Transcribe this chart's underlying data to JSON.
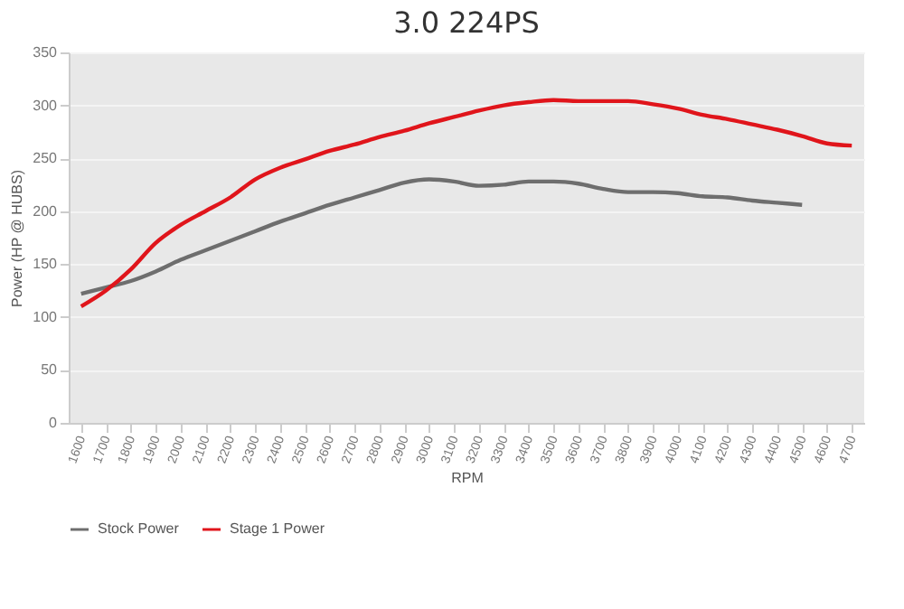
{
  "chart_data": {
    "type": "line",
    "title": "3.0 224PS",
    "xlabel": "RPM",
    "ylabel": "Power (HP @ HUBS)",
    "categories": [
      "1600",
      "1700",
      "1800",
      "1900",
      "2000",
      "2100",
      "2200",
      "2300",
      "2400",
      "2500",
      "2600",
      "2700",
      "2800",
      "2900",
      "3000",
      "3100",
      "3200",
      "3300",
      "3400",
      "3500",
      "3600",
      "3700",
      "3800",
      "3900",
      "4000",
      "4100",
      "4200",
      "4300",
      "4400",
      "4500",
      "4600",
      "4700"
    ],
    "series": [
      {
        "name": "Stock Power",
        "color": "#6e6e6e",
        "values": [
          122,
          128,
          134,
          143,
          154,
          163,
          172,
          181,
          190,
          198,
          206,
          213,
          220,
          227,
          230,
          228,
          224,
          225,
          228,
          228,
          226,
          221,
          218,
          218,
          217,
          214,
          213,
          210,
          208,
          206,
          null,
          null
        ]
      },
      {
        "name": "Stage 1 Power",
        "color": "#e0151b",
        "values": [
          110,
          125,
          145,
          170,
          187,
          200,
          213,
          230,
          241,
          249,
          257,
          263,
          270,
          276,
          283,
          289,
          295,
          300,
          303,
          305,
          304,
          304,
          304,
          301,
          297,
          291,
          287,
          282,
          277,
          271,
          264,
          262
        ]
      }
    ],
    "ylim": [
      0,
      350
    ],
    "yticks": [
      0,
      50,
      100,
      150,
      200,
      250,
      300,
      350
    ],
    "grid": "y",
    "legend": "bottom",
    "marker": "none",
    "line_style": "solid"
  }
}
